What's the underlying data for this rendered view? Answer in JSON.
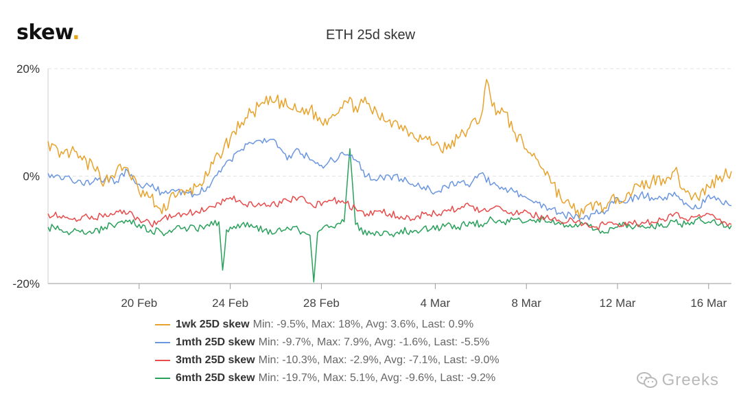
{
  "logo": {
    "text": "skew",
    "dot": "."
  },
  "watermark": {
    "text": "Greeks",
    "icon": "wechat-icon"
  },
  "chart_data": {
    "type": "line",
    "title": "ETH 25d skew",
    "xlabel": "",
    "ylabel": "",
    "x_range": [
      "2020-02-16",
      "2020-03-17"
    ],
    "ylim": [
      -20,
      20
    ],
    "y_ticks": [
      {
        "value": 20,
        "label": "20%"
      },
      {
        "value": 0,
        "label": "0%"
      },
      {
        "value": -20,
        "label": "-20%"
      }
    ],
    "x_ticks": [
      {
        "date": "2020-02-20",
        "label": "20 Feb"
      },
      {
        "date": "2020-02-24",
        "label": "24 Feb"
      },
      {
        "date": "2020-02-28",
        "label": "28 Feb"
      },
      {
        "date": "2020-03-04",
        "label": "4 Mar"
      },
      {
        "date": "2020-03-08",
        "label": "8 Mar"
      },
      {
        "date": "2020-03-12",
        "label": "12 Mar"
      },
      {
        "date": "2020-03-16",
        "label": "16 Mar"
      }
    ],
    "grid": "horizontal dashed",
    "legend_position": "bottom",
    "series": [
      {
        "name": "1wk 25D skew",
        "stats": "Min: -9.5%, Max: 18%, Avg: 3.6%, Last: 0.9%",
        "color": "#e8a22b",
        "points": [
          [
            "2020-02-16",
            6.5
          ],
          [
            "2020-02-16T12:00",
            3.5
          ],
          [
            "2020-02-17",
            4.5
          ],
          [
            "2020-02-17T12:00",
            3
          ],
          [
            "2020-02-18",
            1.5
          ],
          [
            "2020-02-18T12:00",
            -1
          ],
          [
            "2020-02-19",
            1
          ],
          [
            "2020-02-19T12:00",
            1.5
          ],
          [
            "2020-02-20",
            -3
          ],
          [
            "2020-02-20T12:00",
            -4
          ],
          [
            "2020-02-21",
            -7
          ],
          [
            "2020-02-21T12:00",
            -3
          ],
          [
            "2020-02-22",
            -3.5
          ],
          [
            "2020-02-22T12:00",
            -2
          ],
          [
            "2020-02-23",
            0
          ],
          [
            "2020-02-23T12:00",
            4
          ],
          [
            "2020-02-24",
            7
          ],
          [
            "2020-02-24T12:00",
            10
          ],
          [
            "2020-02-25",
            12
          ],
          [
            "2020-02-25T12:00",
            13.5
          ],
          [
            "2020-02-26",
            14
          ],
          [
            "2020-02-26T12:00",
            13
          ],
          [
            "2020-02-27",
            12
          ],
          [
            "2020-02-27T12:00",
            12.5
          ],
          [
            "2020-02-28",
            10
          ],
          [
            "2020-02-28T12:00",
            11.5
          ],
          [
            "2020-02-29",
            14
          ],
          [
            "2020-02-29T12:00",
            13
          ],
          [
            "2020-03-01",
            13.5
          ],
          [
            "2020-03-01T12:00",
            11
          ],
          [
            "2020-03-02",
            10.5
          ],
          [
            "2020-03-02T12:00",
            9.5
          ],
          [
            "2020-03-03",
            8
          ],
          [
            "2020-03-03T12:00",
            7
          ],
          [
            "2020-03-04",
            6
          ],
          [
            "2020-03-04T12:00",
            5
          ],
          [
            "2020-03-05",
            7
          ],
          [
            "2020-03-05T12:00",
            9
          ],
          [
            "2020-03-06",
            11
          ],
          [
            "2020-03-06T06:00",
            18
          ],
          [
            "2020-03-06T12:00",
            13
          ],
          [
            "2020-03-07",
            12
          ],
          [
            "2020-03-07T12:00",
            8
          ],
          [
            "2020-03-08",
            5
          ],
          [
            "2020-03-08T12:00",
            3
          ],
          [
            "2020-03-09",
            0
          ],
          [
            "2020-03-09T12:00",
            -4
          ],
          [
            "2020-03-10",
            -6
          ],
          [
            "2020-03-10T12:00",
            -7
          ],
          [
            "2020-03-11",
            -5
          ],
          [
            "2020-03-11T12:00",
            -6
          ],
          [
            "2020-03-12",
            -4
          ],
          [
            "2020-03-12T12:00",
            -3
          ],
          [
            "2020-03-13",
            -2
          ],
          [
            "2020-03-13T12:00",
            -1
          ],
          [
            "2020-03-14",
            -0.5
          ],
          [
            "2020-03-14T12:00",
            1
          ],
          [
            "2020-03-15",
            -3
          ],
          [
            "2020-03-15T12:00",
            -4
          ],
          [
            "2020-03-16",
            -2
          ],
          [
            "2020-03-16T12:00",
            0
          ],
          [
            "2020-03-17",
            0.9
          ]
        ]
      },
      {
        "name": "1mth 25D skew",
        "stats": "Min: -9.7%, Max: 7.9%, Avg: -1.6%, Last: -5.5%",
        "color": "#6a96e0",
        "points": [
          [
            "2020-02-16",
            0.5
          ],
          [
            "2020-02-16T12:00",
            0
          ],
          [
            "2020-02-17",
            -0.5
          ],
          [
            "2020-02-17T12:00",
            -1.5
          ],
          [
            "2020-02-18",
            -1
          ],
          [
            "2020-02-18T12:00",
            -0.5
          ],
          [
            "2020-02-19",
            -1
          ],
          [
            "2020-02-19T12:00",
            1
          ],
          [
            "2020-02-20",
            -1.5
          ],
          [
            "2020-02-20T12:00",
            -2
          ],
          [
            "2020-02-21",
            -3
          ],
          [
            "2020-02-21T12:00",
            -2.5
          ],
          [
            "2020-02-22",
            -3
          ],
          [
            "2020-02-22T12:00",
            -3.5
          ],
          [
            "2020-02-23",
            -2
          ],
          [
            "2020-02-23T12:00",
            1
          ],
          [
            "2020-02-24",
            3
          ],
          [
            "2020-02-24T12:00",
            5
          ],
          [
            "2020-02-25",
            6
          ],
          [
            "2020-02-25T12:00",
            7
          ],
          [
            "2020-02-26",
            6.5
          ],
          [
            "2020-02-26T12:00",
            3
          ],
          [
            "2020-02-27",
            5
          ],
          [
            "2020-02-27T12:00",
            3
          ],
          [
            "2020-02-28",
            2
          ],
          [
            "2020-02-28T12:00",
            3
          ],
          [
            "2020-02-29",
            4
          ],
          [
            "2020-02-29T12:00",
            3
          ],
          [
            "2020-03-01",
            0
          ],
          [
            "2020-03-01T12:00",
            -0.5
          ],
          [
            "2020-03-02",
            0
          ],
          [
            "2020-03-02T12:00",
            -0.5
          ],
          [
            "2020-03-03",
            -1.5
          ],
          [
            "2020-03-03T12:00",
            -2
          ],
          [
            "2020-03-04",
            -3
          ],
          [
            "2020-03-04T12:00",
            -2
          ],
          [
            "2020-03-05",
            -1
          ],
          [
            "2020-03-05T12:00",
            -2
          ],
          [
            "2020-03-06",
            0.5
          ],
          [
            "2020-03-06T12:00",
            -1.5
          ],
          [
            "2020-03-07",
            -2.5
          ],
          [
            "2020-03-07T12:00",
            -3
          ],
          [
            "2020-03-08",
            -4
          ],
          [
            "2020-03-08T12:00",
            -5
          ],
          [
            "2020-03-09",
            -6
          ],
          [
            "2020-03-09T12:00",
            -7
          ],
          [
            "2020-03-10",
            -7.5
          ],
          [
            "2020-03-10T12:00",
            -8
          ],
          [
            "2020-03-11",
            -7
          ],
          [
            "2020-03-11T12:00",
            -6.5
          ],
          [
            "2020-03-12",
            -4
          ],
          [
            "2020-03-12T12:00",
            -4.5
          ],
          [
            "2020-03-13",
            -3.5
          ],
          [
            "2020-03-13T12:00",
            -4
          ],
          [
            "2020-03-14",
            -4.5
          ],
          [
            "2020-03-14T12:00",
            -3
          ],
          [
            "2020-03-15",
            -5
          ],
          [
            "2020-03-15T12:00",
            -6
          ],
          [
            "2020-03-16",
            -3.5
          ],
          [
            "2020-03-16T12:00",
            -4.5
          ],
          [
            "2020-03-17",
            -5.5
          ]
        ]
      },
      {
        "name": "3mth 25D skew",
        "stats": "Min: -10.3%, Max: -2.9%, Avg: -7.1%, Last: -9.0%",
        "color": "#e84a4a",
        "points": [
          [
            "2020-02-16",
            -7
          ],
          [
            "2020-02-16T12:00",
            -7.5
          ],
          [
            "2020-02-17",
            -8
          ],
          [
            "2020-02-17T12:00",
            -7.5
          ],
          [
            "2020-02-18",
            -8
          ],
          [
            "2020-02-18T12:00",
            -7
          ],
          [
            "2020-02-19",
            -6.5
          ],
          [
            "2020-02-19T12:00",
            -7
          ],
          [
            "2020-02-20",
            -8
          ],
          [
            "2020-02-20T12:00",
            -9
          ],
          [
            "2020-02-21",
            -8
          ],
          [
            "2020-02-21T12:00",
            -7.5
          ],
          [
            "2020-02-22",
            -7
          ],
          [
            "2020-02-22T12:00",
            -6.5
          ],
          [
            "2020-02-23",
            -6
          ],
          [
            "2020-02-23T12:00",
            -5
          ],
          [
            "2020-02-24",
            -4
          ],
          [
            "2020-02-24T12:00",
            -5
          ],
          [
            "2020-02-25",
            -5.5
          ],
          [
            "2020-02-25T12:00",
            -5
          ],
          [
            "2020-02-26",
            -5.5
          ],
          [
            "2020-02-26T12:00",
            -4.5
          ],
          [
            "2020-02-27",
            -4
          ],
          [
            "2020-02-27T12:00",
            -5
          ],
          [
            "2020-02-28",
            -5.5
          ],
          [
            "2020-02-28T12:00",
            -4.5
          ],
          [
            "2020-02-29",
            -5
          ],
          [
            "2020-02-29T12:00",
            -6
          ],
          [
            "2020-03-01",
            -7
          ],
          [
            "2020-03-01T12:00",
            -6.5
          ],
          [
            "2020-03-02",
            -7
          ],
          [
            "2020-03-02T12:00",
            -7.5
          ],
          [
            "2020-03-03",
            -8
          ],
          [
            "2020-03-03T12:00",
            -7
          ],
          [
            "2020-03-04",
            -7
          ],
          [
            "2020-03-04T12:00",
            -6.5
          ],
          [
            "2020-03-05",
            -6
          ],
          [
            "2020-03-05T12:00",
            -5.5
          ],
          [
            "2020-03-06",
            -6.5
          ],
          [
            "2020-03-06T12:00",
            -6
          ],
          [
            "2020-03-07",
            -6.5
          ],
          [
            "2020-03-07T12:00",
            -7
          ],
          [
            "2020-03-08",
            -6.5
          ],
          [
            "2020-03-08T12:00",
            -7.5
          ],
          [
            "2020-03-09",
            -8
          ],
          [
            "2020-03-09T12:00",
            -8.5
          ],
          [
            "2020-03-10",
            -8
          ],
          [
            "2020-03-10T12:00",
            -9
          ],
          [
            "2020-03-11",
            -9.5
          ],
          [
            "2020-03-11T12:00",
            -9
          ],
          [
            "2020-03-12",
            -9
          ],
          [
            "2020-03-12T12:00",
            -8.5
          ],
          [
            "2020-03-13",
            -9
          ],
          [
            "2020-03-13T12:00",
            -8.5
          ],
          [
            "2020-03-14",
            -8
          ],
          [
            "2020-03-14T12:00",
            -7
          ],
          [
            "2020-03-15",
            -8
          ],
          [
            "2020-03-15T12:00",
            -7.5
          ],
          [
            "2020-03-16",
            -7
          ],
          [
            "2020-03-16T12:00",
            -8
          ],
          [
            "2020-03-17",
            -9.0
          ]
        ]
      },
      {
        "name": "6mth 25D skew",
        "stats": "Min: -19.7%, Max: 5.1%, Avg: -9.6%, Last: -9.2%",
        "color": "#28a05a",
        "points": [
          [
            "2020-02-16",
            -9.5
          ],
          [
            "2020-02-16T12:00",
            -10
          ],
          [
            "2020-02-17",
            -10.5
          ],
          [
            "2020-02-17T12:00",
            -10
          ],
          [
            "2020-02-18",
            -10.5
          ],
          [
            "2020-02-18T12:00",
            -9.5
          ],
          [
            "2020-02-19",
            -9
          ],
          [
            "2020-02-19T12:00",
            -8.5
          ],
          [
            "2020-02-20",
            -9
          ],
          [
            "2020-02-20T12:00",
            -10
          ],
          [
            "2020-02-21",
            -10.5
          ],
          [
            "2020-02-21T12:00",
            -10
          ],
          [
            "2020-02-22",
            -9.5
          ],
          [
            "2020-02-22T12:00",
            -10
          ],
          [
            "2020-02-23",
            -9
          ],
          [
            "2020-02-23T12:00",
            -8.5
          ],
          [
            "2020-02-23T16:00",
            -17.5
          ],
          [
            "2020-02-23T20:00",
            -10
          ],
          [
            "2020-02-24",
            -9.5
          ],
          [
            "2020-02-24T12:00",
            -9
          ],
          [
            "2020-02-25",
            -9.5
          ],
          [
            "2020-02-25T12:00",
            -10
          ],
          [
            "2020-02-26",
            -10.5
          ],
          [
            "2020-02-26T12:00",
            -9.5
          ],
          [
            "2020-02-27",
            -10
          ],
          [
            "2020-02-27T12:00",
            -11
          ],
          [
            "2020-02-27T16:00",
            -19.7
          ],
          [
            "2020-02-27T20:00",
            -10.5
          ],
          [
            "2020-02-28",
            -10
          ],
          [
            "2020-02-28T12:00",
            -9.5
          ],
          [
            "2020-02-29",
            -8.5
          ],
          [
            "2020-02-29T06:00",
            5.1
          ],
          [
            "2020-02-29T12:00",
            -9
          ],
          [
            "2020-03-01",
            -11
          ],
          [
            "2020-03-01T12:00",
            -10.5
          ],
          [
            "2020-03-02",
            -11
          ],
          [
            "2020-03-02T12:00",
            -10
          ],
          [
            "2020-03-03",
            -10.5
          ],
          [
            "2020-03-03T12:00",
            -9.5
          ],
          [
            "2020-03-04",
            -10
          ],
          [
            "2020-03-04T12:00",
            -9
          ],
          [
            "2020-03-05",
            -9.5
          ],
          [
            "2020-03-05T12:00",
            -8.5
          ],
          [
            "2020-03-06",
            -9
          ],
          [
            "2020-03-06T12:00",
            -8
          ],
          [
            "2020-03-07",
            -8.5
          ],
          [
            "2020-03-07T12:00",
            -8
          ],
          [
            "2020-03-08",
            -8.5
          ],
          [
            "2020-03-08T12:00",
            -8
          ],
          [
            "2020-03-09",
            -8.5
          ],
          [
            "2020-03-09T12:00",
            -9
          ],
          [
            "2020-03-10",
            -9.5
          ],
          [
            "2020-03-10T12:00",
            -9
          ],
          [
            "2020-03-11",
            -10
          ],
          [
            "2020-03-11T12:00",
            -10.5
          ],
          [
            "2020-03-12",
            -9.5
          ],
          [
            "2020-03-12T12:00",
            -9
          ],
          [
            "2020-03-13",
            -9.5
          ],
          [
            "2020-03-13T12:00",
            -9
          ],
          [
            "2020-03-14",
            -9.5
          ],
          [
            "2020-03-14T12:00",
            -8.5
          ],
          [
            "2020-03-15",
            -9
          ],
          [
            "2020-03-15T12:00",
            -8
          ],
          [
            "2020-03-16",
            -8.5
          ],
          [
            "2020-03-16T12:00",
            -9
          ],
          [
            "2020-03-17",
            -9.2
          ]
        ]
      }
    ]
  }
}
